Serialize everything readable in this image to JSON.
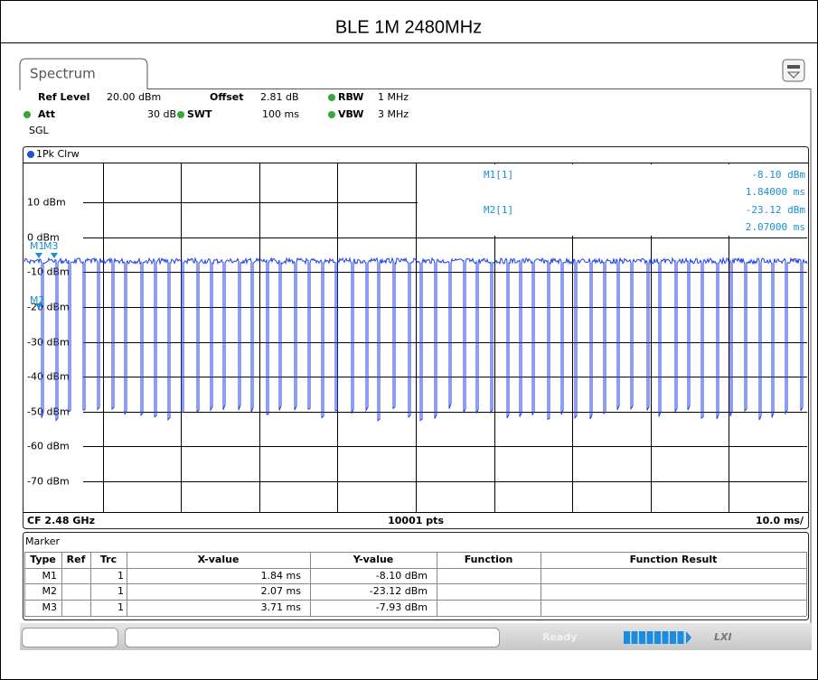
{
  "title": "BLE 1M 2480MHz",
  "tab": "Spectrum",
  "settings": {
    "ref_level_label": "Ref Level",
    "ref_level": "20.00 dBm",
    "offset_label": "Offset",
    "offset": "2.81 dB",
    "rbw_label": "RBW",
    "rbw": "1 MHz",
    "att_label": "Att",
    "att": "30 dB",
    "swt_label": "SWT",
    "swt": "100 ms",
    "vbw_label": "VBW",
    "vbw": "3 MHz",
    "mode": "SGL"
  },
  "trace_label": "1Pk Clrw",
  "y_labels": [
    "10 dBm",
    "0 dBm",
    "-10 dBm",
    "-20 dBm",
    "-30 dBm",
    "-40 dBm",
    "-50 dBm",
    "-60 dBm",
    "-70 dBm"
  ],
  "marker_labels": [
    "M1",
    "M3",
    "M2"
  ],
  "marker_readout": [
    {
      "name": "M1[1]",
      "level": "-8.10 dBm",
      "time": "1.84000 ms"
    },
    {
      "name": "M2[1]",
      "level": "-23.12 dBm",
      "time": "2.07000 ms"
    }
  ],
  "footer": {
    "center_freq": "CF 2.48 GHz",
    "points": "10001 pts",
    "sweep_div": "10.0 ms/"
  },
  "marker_table": {
    "title": "Marker",
    "columns": [
      "Type",
      "Ref",
      "Trc",
      "X-value",
      "Y-value",
      "Function",
      "Function Result"
    ],
    "rows": [
      {
        "type": "M1",
        "trc": "1",
        "x": "1.84 ms",
        "y": "-8.10 dBm"
      },
      {
        "type": "M2",
        "trc": "1",
        "x": "2.07 ms",
        "y": "-23.12 dBm"
      },
      {
        "type": "M3",
        "trc": "1",
        "x": "3.71 ms",
        "y": "-7.93 dBm"
      }
    ]
  },
  "status": "Ready",
  "lxi": "LXI"
}
